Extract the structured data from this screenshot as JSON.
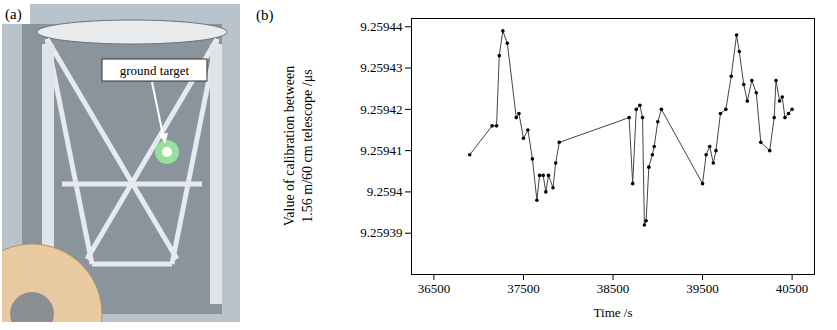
{
  "photo": {
    "panel_label": "(a)",
    "annotation": "ground target"
  },
  "chart_data": {
    "type": "line",
    "panel_label": "(b)",
    "x_label": "Time /s",
    "y_label": "Value of calibration between 1.56 m/60 cm telescope /μs",
    "color": "#444444",
    "marker": "dot",
    "x": [
      36900,
      37150,
      37200,
      37230,
      37270,
      37320,
      37420,
      37450,
      37500,
      37550,
      37600,
      37650,
      37680,
      37720,
      37750,
      37780,
      37830,
      37860,
      37900,
      38680,
      38720,
      38760,
      38800,
      38830,
      38850,
      38870,
      38900,
      38940,
      38960,
      39000,
      39040,
      39500,
      39540,
      39580,
      39620,
      39650,
      39700,
      39760,
      39820,
      39880,
      39910,
      39960,
      40000,
      40050,
      40100,
      40150,
      40250,
      40300,
      40320,
      40360,
      40390,
      40420,
      40460,
      40500
    ],
    "values": [
      9.259409,
      9.259416,
      9.259416,
      9.259433,
      9.259439,
      9.259436,
      9.259418,
      9.259419,
      9.259413,
      9.259415,
      9.259408,
      9.259398,
      9.259404,
      9.259404,
      9.2594,
      9.259404,
      9.259401,
      9.259407,
      9.259412,
      9.259418,
      9.259402,
      9.25942,
      9.259421,
      9.259418,
      9.259392,
      9.259393,
      9.259406,
      9.259409,
      9.259411,
      9.259417,
      9.25942,
      9.259402,
      9.259409,
      9.259411,
      9.259407,
      9.25941,
      9.259419,
      9.25942,
      9.259428,
      9.259438,
      9.259434,
      9.259426,
      9.259422,
      9.259427,
      9.259424,
      9.259412,
      9.25941,
      9.259418,
      9.259427,
      9.259422,
      9.259423,
      9.259418,
      9.259419,
      9.25942
    ],
    "xlim": [
      36250,
      40750
    ],
    "xticks": [
      36500,
      37500,
      38500,
      39500,
      40500
    ],
    "ylim": [
      9.25938,
      9.259442
    ],
    "yticks": [
      9.25939,
      9.2594,
      9.25941,
      9.25942,
      9.25943,
      9.25944
    ],
    "grid": false
  }
}
